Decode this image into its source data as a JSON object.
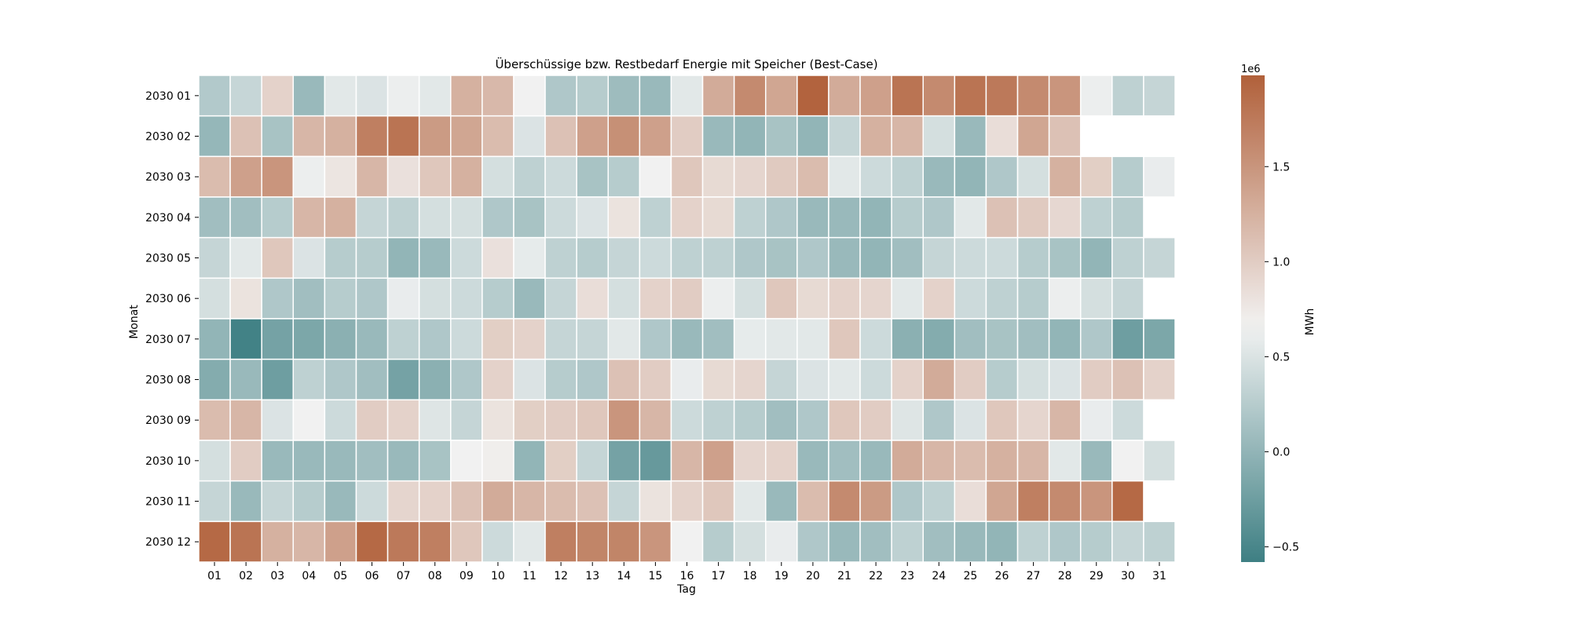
{
  "chart_data": {
    "type": "heatmap",
    "title": "Überschüssige bzw. Restbedarf Energie mit Speicher (Best-Case)",
    "xlabel": "Tag",
    "ylabel": "Monat",
    "x_categories": [
      "01",
      "02",
      "03",
      "04",
      "05",
      "06",
      "07",
      "08",
      "09",
      "10",
      "11",
      "12",
      "13",
      "14",
      "15",
      "16",
      "17",
      "18",
      "19",
      "20",
      "21",
      "22",
      "23",
      "24",
      "25",
      "26",
      "27",
      "28",
      "29",
      "30",
      "31"
    ],
    "y_categories": [
      "2030 01",
      "2030 02",
      "2030 03",
      "2030 04",
      "2030 05",
      "2030 06",
      "2030 07",
      "2030 08",
      "2030 09",
      "2030 10",
      "2030 11",
      "2030 12"
    ],
    "values": [
      [
        0.22,
        0.36,
        0.95,
        0.05,
        0.55,
        0.5,
        0.62,
        0.55,
        1.25,
        1.18,
        0.65,
        0.2,
        0.25,
        0.08,
        0.05,
        0.55,
        1.3,
        1.6,
        1.35,
        1.95,
        1.3,
        1.4,
        1.8,
        1.6,
        1.8,
        1.75,
        1.6,
        1.5,
        0.62,
        0.3,
        0.35
      ],
      [
        0.02,
        1.1,
        0.15,
        1.2,
        1.25,
        1.7,
        1.8,
        1.45,
        1.35,
        1.15,
        0.5,
        1.1,
        1.4,
        1.55,
        1.4,
        1.0,
        0.05,
        0.0,
        0.15,
        0.0,
        0.35,
        1.25,
        1.2,
        0.45,
        0.05,
        0.85,
        1.35,
        1.1,
        null,
        null,
        null
      ],
      [
        1.15,
        1.4,
        1.5,
        0.62,
        0.78,
        1.2,
        0.82,
        1.05,
        1.25,
        0.45,
        0.3,
        0.4,
        0.15,
        0.25,
        0.65,
        1.05,
        0.88,
        0.92,
        1.02,
        1.15,
        0.55,
        0.4,
        0.3,
        0.05,
        0.0,
        0.2,
        0.45,
        1.25,
        0.98,
        0.25,
        0.6
      ],
      [
        0.1,
        0.1,
        0.25,
        1.2,
        1.25,
        0.35,
        0.3,
        0.45,
        0.45,
        0.2,
        0.15,
        0.4,
        0.5,
        0.8,
        0.3,
        0.95,
        0.88,
        0.3,
        0.2,
        0.05,
        0.05,
        0.0,
        0.25,
        0.2,
        0.55,
        1.1,
        1.02,
        0.9,
        0.3,
        0.25,
        null
      ],
      [
        0.35,
        0.55,
        1.05,
        0.5,
        0.25,
        0.25,
        0.0,
        0.05,
        0.4,
        0.82,
        0.58,
        0.3,
        0.25,
        0.35,
        0.4,
        0.3,
        0.3,
        0.2,
        0.15,
        0.2,
        0.05,
        0.0,
        0.1,
        0.35,
        0.4,
        0.4,
        0.25,
        0.15,
        0.0,
        0.3,
        0.35
      ],
      [
        0.45,
        0.8,
        0.2,
        0.1,
        0.25,
        0.2,
        0.6,
        0.45,
        0.4,
        0.25,
        0.05,
        0.35,
        0.85,
        0.45,
        0.95,
        1.0,
        0.62,
        0.45,
        1.05,
        0.88,
        0.95,
        0.92,
        0.55,
        0.95,
        0.4,
        0.3,
        0.25,
        0.62,
        0.45,
        0.35,
        null
      ],
      [
        0.0,
        -0.55,
        -0.2,
        -0.15,
        -0.05,
        0.05,
        0.3,
        0.2,
        0.4,
        0.98,
        0.95,
        0.35,
        0.35,
        0.55,
        0.2,
        0.05,
        0.1,
        0.58,
        0.55,
        0.55,
        1.05,
        0.4,
        -0.05,
        -0.1,
        0.1,
        0.15,
        0.1,
        0.0,
        0.2,
        -0.25,
        -0.15
      ],
      [
        -0.1,
        0.05,
        -0.25,
        0.3,
        0.2,
        0.1,
        -0.2,
        -0.05,
        0.2,
        0.95,
        0.5,
        0.25,
        0.2,
        1.1,
        1.0,
        0.6,
        0.88,
        0.92,
        0.35,
        0.5,
        0.55,
        0.4,
        0.95,
        1.3,
        1.0,
        0.25,
        0.45,
        0.5,
        1.0,
        1.1,
        0.95
      ],
      [
        1.15,
        1.2,
        0.5,
        0.65,
        0.4,
        1.0,
        0.95,
        0.52,
        0.35,
        0.8,
        0.98,
        1.0,
        1.05,
        1.5,
        1.2,
        0.4,
        0.3,
        0.25,
        0.1,
        0.2,
        1.05,
        1.0,
        0.52,
        0.2,
        0.5,
        1.05,
        0.92,
        1.2,
        0.6,
        0.4,
        null
      ],
      [
        0.45,
        1.0,
        0.05,
        0.05,
        0.05,
        0.1,
        0.05,
        0.15,
        0.65,
        0.7,
        0.0,
        0.98,
        0.35,
        -0.2,
        -0.3,
        1.2,
        1.4,
        0.92,
        0.95,
        0.05,
        0.1,
        0.05,
        1.3,
        1.2,
        1.15,
        1.25,
        1.2,
        0.55,
        0.05,
        0.65,
        0.45
      ],
      [
        0.35,
        0.05,
        0.35,
        0.25,
        0.05,
        0.4,
        0.92,
        0.95,
        1.1,
        1.3,
        1.2,
        1.15,
        1.1,
        0.35,
        0.8,
        0.95,
        1.05,
        0.55,
        0.05,
        1.15,
        1.6,
        1.45,
        0.2,
        0.3,
        0.85,
        1.35,
        1.7,
        1.6,
        1.5,
        1.9,
        null
      ],
      [
        1.9,
        1.8,
        1.25,
        1.2,
        1.4,
        1.9,
        1.75,
        1.7,
        1.05,
        0.4,
        0.55,
        1.7,
        1.65,
        1.65,
        1.5,
        0.65,
        0.25,
        0.45,
        0.6,
        0.2,
        0.05,
        0.1,
        0.3,
        0.1,
        0.05,
        0.0,
        0.3,
        0.2,
        0.25,
        0.35,
        0.3
      ]
    ],
    "colorbar": {
      "label": "MWh",
      "offset_label": "1e6",
      "ticks": [
        -0.5,
        0.0,
        0.5,
        1.0,
        1.5
      ],
      "tick_labels": [
        "−0.5",
        "0.0",
        "0.5",
        "1.0",
        "1.5"
      ],
      "vmin": -0.58,
      "vmax": 1.98,
      "colors": [
        "#3e7f83",
        "#f2f2f2",
        "#b1603a"
      ]
    },
    "grid": false,
    "legend": "right colorbar"
  }
}
